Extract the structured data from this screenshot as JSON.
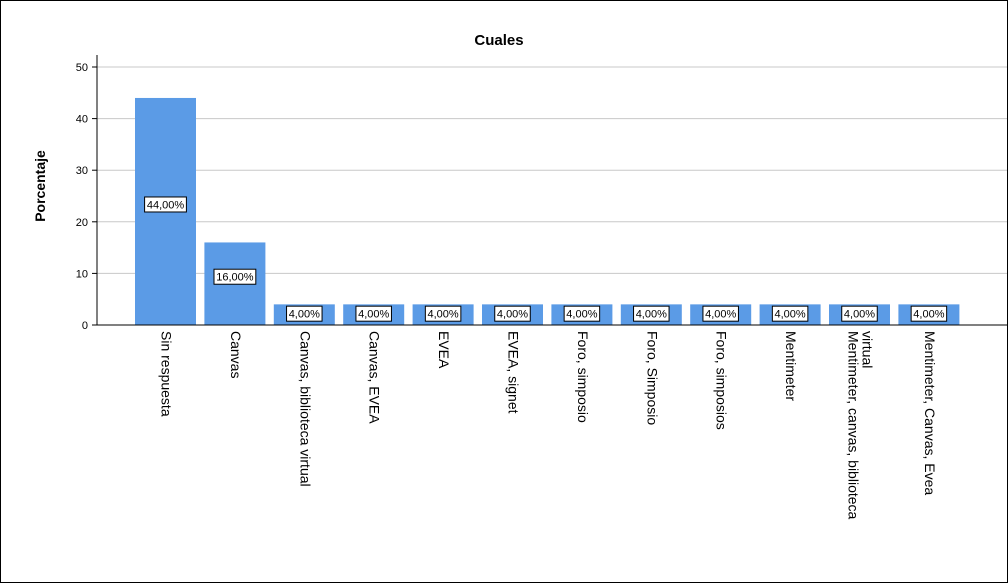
{
  "chart_data": {
    "type": "bar",
    "title": "Cuales",
    "ylabel": "Porcentaje",
    "xlabel": "",
    "ylim": [
      0,
      50
    ],
    "yticks": [
      0,
      10,
      20,
      30,
      40,
      50
    ],
    "grid": true,
    "bar_color": "#5B9BE6",
    "categories": [
      [
        "Sin respuesta"
      ],
      [
        "Canvas"
      ],
      [
        "Canvas, biblioteca virtual"
      ],
      [
        "Canvas, EVEA"
      ],
      [
        "EVEA"
      ],
      [
        "EVEA, signet"
      ],
      [
        "Foro, simposio"
      ],
      [
        "Foro, Simposio"
      ],
      [
        "Foro, simposios"
      ],
      [
        "Mentimeter"
      ],
      [
        "Mentimeter, canvas, biblioteca",
        "virtual"
      ],
      [
        "Mentimeter, Canvas, Evea"
      ]
    ],
    "values": [
      44,
      16,
      4,
      4,
      4,
      4,
      4,
      4,
      4,
      4,
      4,
      4
    ],
    "data_labels": [
      "44,00%",
      "16,00%",
      "4,00%",
      "4,00%",
      "4,00%",
      "4,00%",
      "4,00%",
      "4,00%",
      "4,00%",
      "4,00%",
      "4,00%",
      "4,00%"
    ]
  }
}
